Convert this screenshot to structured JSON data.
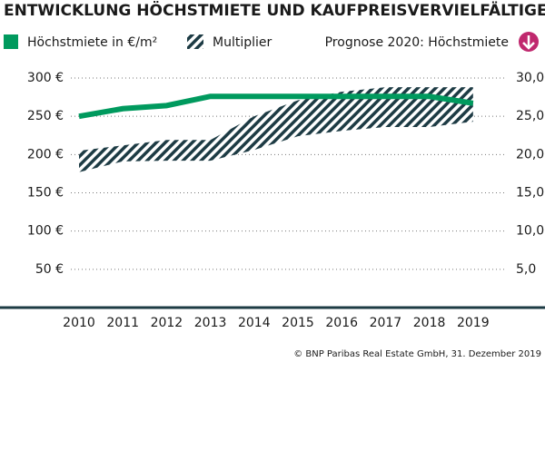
{
  "chart_data": {
    "type": "line",
    "title": "ENTWICKLUNG HÖCHSTMIETE UND KAUFPREISVERVIELFÄLTIGER",
    "categories": [
      "2010",
      "2011",
      "2012",
      "2013",
      "2014",
      "2015",
      "2016",
      "2017",
      "2018",
      "2019"
    ],
    "series": [
      {
        "name": "Höchstmiete in €/m²",
        "color": "#009a5e",
        "values": [
          250,
          260,
          264,
          276,
          276,
          276,
          276,
          276,
          276,
          267
        ]
      },
      {
        "name": "Multiplier",
        "color": "#1d3b44",
        "axis": "y2",
        "type": "band",
        "high": [
          20.5,
          21.2,
          21.9,
          21.9,
          25.0,
          27.1,
          28.2,
          28.8,
          28.8,
          28.8
        ],
        "low": [
          17.7,
          19.1,
          19.2,
          19.2,
          20.6,
          22.4,
          23.1,
          23.6,
          23.6,
          24.3
        ]
      }
    ],
    "forecast_label": "Prognose 2020: Höchstmiete",
    "forecast_color": "#c0286e",
    "ylim": [
      0,
      300
    ],
    "yticks": [
      {
        "value": 50,
        "label": "50 €"
      },
      {
        "value": 100,
        "label": "100 €"
      },
      {
        "value": 150,
        "label": "150 €"
      },
      {
        "value": 200,
        "label": "200 €"
      },
      {
        "value": 250,
        "label": "250 €"
      },
      {
        "value": 300,
        "label": "300 €"
      }
    ],
    "y2lim": [
      0,
      30
    ],
    "y2ticks": [
      {
        "value": 5,
        "label": "5,0"
      },
      {
        "value": 10,
        "label": "10,0"
      },
      {
        "value": 15,
        "label": "15,0"
      },
      {
        "value": 20,
        "label": "20,0"
      },
      {
        "value": 25,
        "label": "25,0"
      },
      {
        "value": 30,
        "label": "30,0"
      }
    ],
    "grid": true,
    "source": "© BNP Paribas Real Estate GmbH, 31. Dezember 2019"
  }
}
